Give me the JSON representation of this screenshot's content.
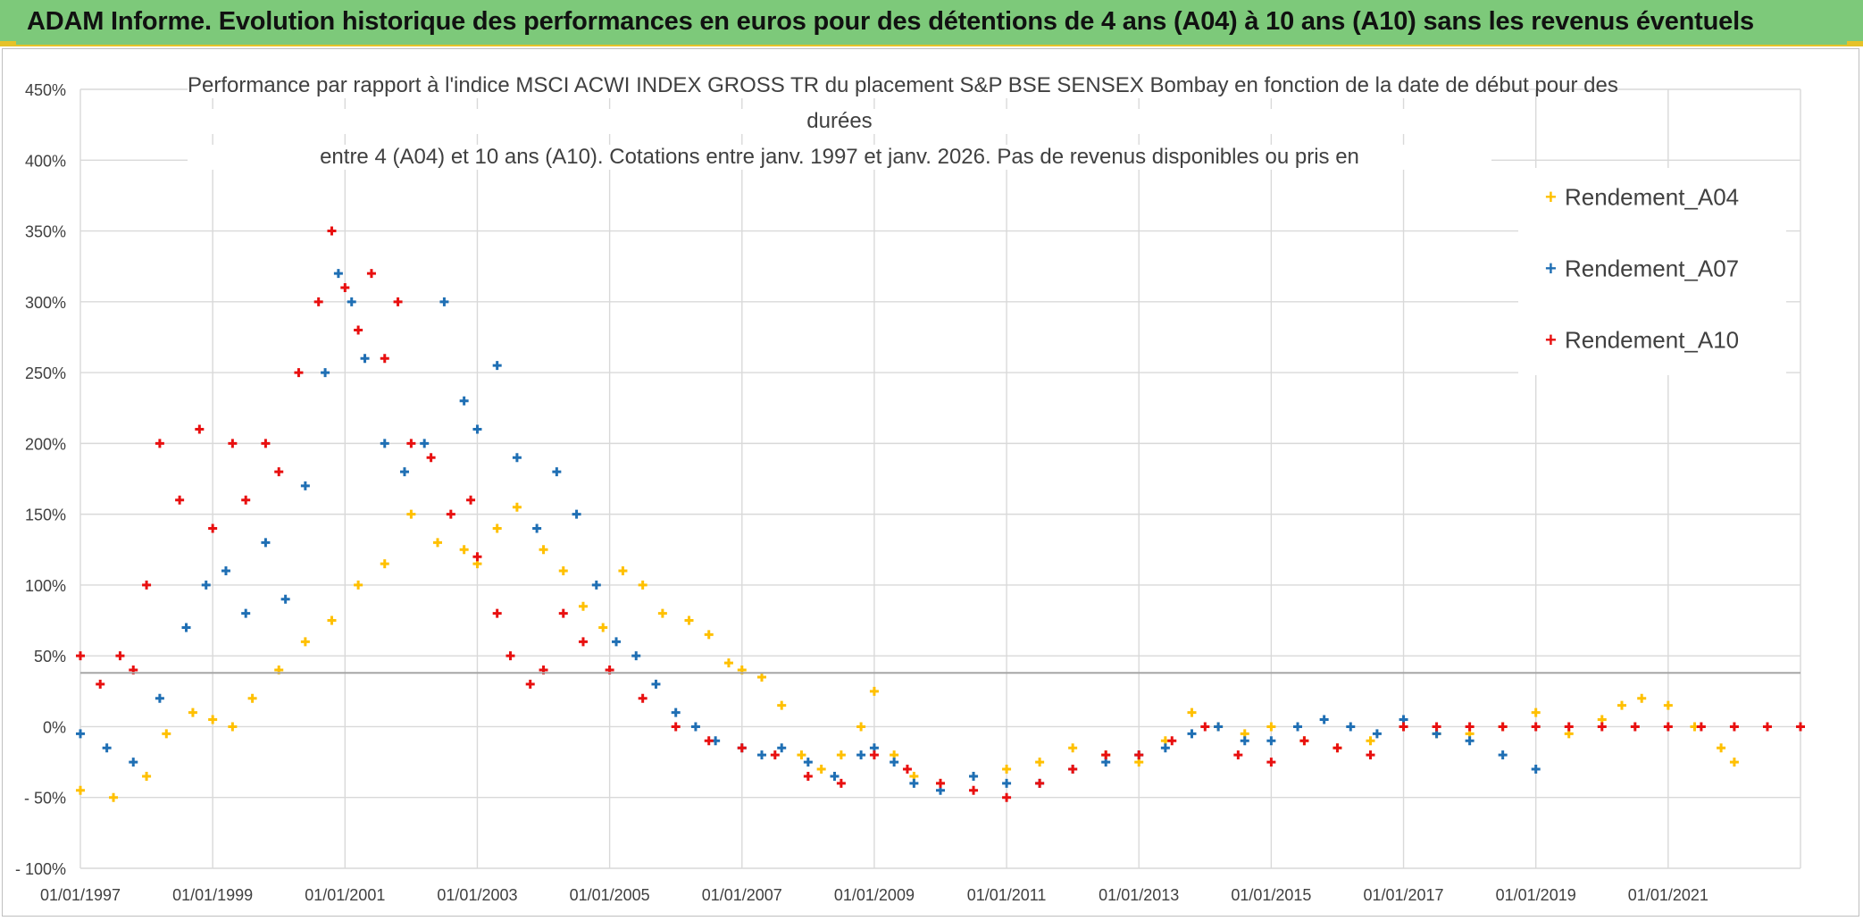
{
  "banner": {
    "title": "ADAM Informe. Evolution historique des performances en euros pour des détentions de 4 ans (A04) à 10 ans (A10) sans les revenus éventuels"
  },
  "chart_data": {
    "type": "scatter",
    "title_lines": [
      "Performance par rapport à l'indice MSCI ACWI INDEX GROSS TR  du placement S&P BSE SENSEX Bombay en fonction de la date de début pour des",
      "durées",
      "entre 4 (A04) et 10 ans (A10). Cotations entre janv. 1997 et janv. 2026. Pas de revenus disponibles ou pris en"
    ],
    "xlabel": "",
    "ylabel": "",
    "xlim": [
      1997.0,
      2023.0
    ],
    "ylim": [
      -100,
      450
    ],
    "x_ticks": [
      "01/01/1997",
      "01/01/1999",
      "01/01/2001",
      "01/01/2003",
      "01/01/2005",
      "01/01/2007",
      "01/01/2009",
      "01/01/2011",
      "01/01/2013",
      "01/01/2015",
      "01/01/2017",
      "01/01/2019",
      "01/01/2021"
    ],
    "y_ticks": [
      "- 100%",
      "- 50%",
      "0%",
      "50%",
      "100%",
      "150%",
      "200%",
      "250%",
      "300%",
      "350%",
      "400%",
      "450%"
    ],
    "reference_line_y": 38,
    "legend_position": "top-right",
    "series": [
      {
        "name": "Rendement_A04",
        "color": "#ffc000",
        "marker": "+",
        "x": [
          1997.0,
          1997.5,
          1998.0,
          1998.3,
          1998.7,
          1999.0,
          1999.3,
          1999.6,
          2000.0,
          2000.4,
          2000.8,
          2001.2,
          2001.6,
          2002.0,
          2002.4,
          2002.8,
          2003.0,
          2003.3,
          2003.6,
          2004.0,
          2004.3,
          2004.6,
          2004.9,
          2005.2,
          2005.5,
          2005.8,
          2006.2,
          2006.5,
          2006.8,
          2007.0,
          2007.3,
          2007.6,
          2007.9,
          2008.2,
          2008.5,
          2008.8,
          2009.0,
          2009.3,
          2009.6,
          2010.0,
          2010.5,
          2011.0,
          2011.5,
          2012.0,
          2012.5,
          2013.0,
          2013.4,
          2013.8,
          2014.2,
          2014.6,
          2015.0,
          2015.5,
          2016.0,
          2016.5,
          2017.0,
          2017.5,
          2018.0,
          2018.5,
          2019.0,
          2019.5,
          2020.0,
          2020.3,
          2020.6,
          2021.0,
          2021.4,
          2021.8,
          2022.0
        ],
        "y": [
          -45,
          -50,
          -35,
          -5,
          10,
          5,
          0,
          20,
          40,
          60,
          75,
          100,
          115,
          150,
          130,
          125,
          115,
          140,
          155,
          125,
          110,
          85,
          70,
          110,
          100,
          80,
          75,
          65,
          45,
          40,
          35,
          15,
          -20,
          -30,
          -20,
          0,
          25,
          -20,
          -35,
          -40,
          -35,
          -30,
          -25,
          -15,
          -20,
          -25,
          -10,
          10,
          0,
          -5,
          0,
          -10,
          -15,
          -10,
          0,
          -5,
          -5,
          0,
          10,
          -5,
          5,
          15,
          20,
          15,
          0,
          -15,
          -25
        ]
      },
      {
        "name": "Rendement_A07",
        "color": "#1f6fb4",
        "marker": "+",
        "x": [
          1997.0,
          1997.4,
          1997.8,
          1998.2,
          1998.6,
          1998.9,
          1999.2,
          1999.5,
          1999.8,
          2000.1,
          2000.4,
          2000.7,
          2000.9,
          2001.1,
          2001.3,
          2001.6,
          2001.9,
          2002.2,
          2002.5,
          2002.8,
          2003.0,
          2003.3,
          2003.6,
          2003.9,
          2004.2,
          2004.5,
          2004.8,
          2005.1,
          2005.4,
          2005.7,
          2006.0,
          2006.3,
          2006.6,
          2007.0,
          2007.3,
          2007.6,
          2008.0,
          2008.4,
          2008.8,
          2009.0,
          2009.3,
          2009.6,
          2010.0,
          2010.5,
          2011.0,
          2011.5,
          2012.0,
          2012.5,
          2013.0,
          2013.4,
          2013.8,
          2014.2,
          2014.6,
          2015.0,
          2015.4,
          2015.8,
          2016.2,
          2016.6,
          2017.0,
          2017.5,
          2018.0,
          2018.5,
          2019.0
        ],
        "y": [
          -5,
          -15,
          -25,
          20,
          70,
          100,
          110,
          80,
          130,
          90,
          170,
          250,
          320,
          300,
          260,
          200,
          180,
          200,
          300,
          230,
          210,
          255,
          190,
          140,
          180,
          150,
          100,
          60,
          50,
          30,
          10,
          0,
          -10,
          -15,
          -20,
          -15,
          -25,
          -35,
          -20,
          -15,
          -25,
          -40,
          -45,
          -35,
          -40,
          -40,
          -30,
          -25,
          -20,
          -15,
          -5,
          0,
          -10,
          -10,
          0,
          5,
          0,
          -5,
          5,
          -5,
          -10,
          -20,
          -30
        ]
      },
      {
        "name": "Rendement_A10",
        "color": "#e81010",
        "marker": "+",
        "x": [
          1997.0,
          1997.3,
          1997.6,
          1997.8,
          1998.0,
          1998.2,
          1998.5,
          1998.8,
          1999.0,
          1999.3,
          1999.5,
          1999.8,
          2000.0,
          2000.3,
          2000.6,
          2000.8,
          2001.0,
          2001.2,
          2001.4,
          2001.6,
          2001.8,
          2002.0,
          2002.3,
          2002.6,
          2002.9,
          2003.0,
          2003.3,
          2003.5,
          2003.8,
          2004.0,
          2004.3,
          2004.6,
          2005.0,
          2005.5,
          2006.0,
          2006.5,
          2007.0,
          2007.5,
          2008.0,
          2008.5,
          2009.0,
          2009.5,
          2010.0,
          2010.5,
          2011.0,
          2011.5,
          2012.0,
          2012.5,
          2013.0,
          2013.5,
          2014.0,
          2014.5,
          2015.0,
          2015.5,
          2016.0,
          2016.5,
          2017.0,
          2017.5,
          2018.0,
          2018.5,
          2019.0,
          2019.5,
          2020.0,
          2020.5,
          2021.0,
          2021.5,
          2022.0,
          2022.5,
          2023.0
        ],
        "y": [
          50,
          30,
          50,
          40,
          100,
          200,
          160,
          210,
          140,
          200,
          160,
          200,
          180,
          250,
          300,
          350,
          310,
          280,
          320,
          260,
          300,
          200,
          190,
          150,
          160,
          120,
          80,
          50,
          30,
          40,
          80,
          60,
          40,
          20,
          0,
          -10,
          -15,
          -20,
          -35,
          -40,
          -20,
          -30,
          -40,
          -45,
          -50,
          -40,
          -30,
          -20,
          -20,
          -10,
          0,
          -20,
          -25,
          -10,
          -15,
          -20,
          0,
          0,
          0,
          0,
          0,
          0,
          0,
          0,
          0,
          0,
          0,
          0,
          0
        ]
      }
    ]
  }
}
